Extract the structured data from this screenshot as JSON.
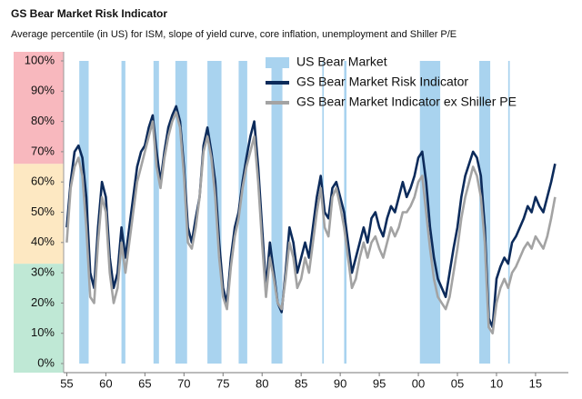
{
  "chart_data": {
    "type": "line",
    "title": "GS Bear Market Risk Indicator",
    "subtitle": "Average percentile (in US) for ISM, slope of yield curve, core inflation, unemployment and Shiller P/E",
    "xlim": [
      1954.6,
      2019.2
    ],
    "ylim": [
      -3,
      103
    ],
    "xticks": [
      {
        "value": 1955,
        "label": "55"
      },
      {
        "value": 1960,
        "label": "60"
      },
      {
        "value": 1965,
        "label": "65"
      },
      {
        "value": 1970,
        "label": "70"
      },
      {
        "value": 1975,
        "label": "75"
      },
      {
        "value": 1980,
        "label": "80"
      },
      {
        "value": 1985,
        "label": "85"
      },
      {
        "value": 1990,
        "label": "90"
      },
      {
        "value": 1995,
        "label": "95"
      },
      {
        "value": 2000,
        "label": "00"
      },
      {
        "value": 2005,
        "label": "05"
      },
      {
        "value": 2010,
        "label": "10"
      },
      {
        "value": 2015,
        "label": "15"
      }
    ],
    "yticks": [
      {
        "value": 0,
        "label": "0%"
      },
      {
        "value": 10,
        "label": "10%"
      },
      {
        "value": 20,
        "label": "20%"
      },
      {
        "value": 30,
        "label": "30%"
      },
      {
        "value": 40,
        "label": "40%"
      },
      {
        "value": 50,
        "label": "50%"
      },
      {
        "value": 60,
        "label": "60%"
      },
      {
        "value": 70,
        "label": "70%"
      },
      {
        "value": 80,
        "label": "80%"
      },
      {
        "value": 90,
        "label": "90%"
      },
      {
        "value": 100,
        "label": "100%"
      }
    ],
    "zones": [
      {
        "from": -3,
        "to": 33,
        "color": "#bfe8d5"
      },
      {
        "from": 33,
        "to": 66,
        "color": "#fde8c2"
      },
      {
        "from": 66,
        "to": 103,
        "color": "#f8b8be"
      }
    ],
    "bear_markets": {
      "name": "US Bear Market",
      "color": "#a9d3ef",
      "periods": [
        [
          1956.6,
          1957.8
        ],
        [
          1962.0,
          1962.5
        ],
        [
          1966.1,
          1966.8
        ],
        [
          1968.9,
          1970.4
        ],
        [
          1973.0,
          1974.8
        ],
        [
          1977.0,
          1978.1
        ],
        [
          1981.2,
          1982.6
        ],
        [
          1987.7,
          1987.9
        ],
        [
          1990.5,
          1990.8
        ],
        [
          2000.2,
          2002.8
        ],
        [
          2007.8,
          2009.2
        ],
        [
          2011.5,
          2011.7
        ]
      ]
    },
    "legend": "upper right",
    "x": [
      1955,
      1955.5,
      1956,
      1956.5,
      1957,
      1957.5,
      1958,
      1958.5,
      1959,
      1959.5,
      1960,
      1960.5,
      1961,
      1961.5,
      1962,
      1962.5,
      1963,
      1963.5,
      1964,
      1964.5,
      1965,
      1965.5,
      1966,
      1966.5,
      1967,
      1967.5,
      1968,
      1968.5,
      1969,
      1969.5,
      1970,
      1970.5,
      1971,
      1971.5,
      1972,
      1972.5,
      1973,
      1973.5,
      1974,
      1974.5,
      1975,
      1975.5,
      1976,
      1976.5,
      1977,
      1977.5,
      1978,
      1978.5,
      1979,
      1979.5,
      1980,
      1980.5,
      1981,
      1981.5,
      1982,
      1982.5,
      1983,
      1983.5,
      1984,
      1984.5,
      1985,
      1985.5,
      1986,
      1986.5,
      1987,
      1987.5,
      1988,
      1988.5,
      1989,
      1989.5,
      1990,
      1990.5,
      1991,
      1991.5,
      1992,
      1992.5,
      1993,
      1993.5,
      1994,
      1994.5,
      1995,
      1995.5,
      1996,
      1996.5,
      1997,
      1997.5,
      1998,
      1998.5,
      1999,
      1999.5,
      2000,
      2000.5,
      2001,
      2001.5,
      2002,
      2002.5,
      2003,
      2003.5,
      2004,
      2004.5,
      2005,
      2005.5,
      2006,
      2006.5,
      2007,
      2007.5,
      2008,
      2008.5,
      2009,
      2009.5,
      2010,
      2010.5,
      2011,
      2011.5,
      2012,
      2012.5,
      2013,
      2013.5,
      2014,
      2014.5,
      2015,
      2015.5,
      2016,
      2016.5,
      2017,
      2017.5
    ],
    "series": [
      {
        "name": "GS Bear Market Risk Indicator",
        "color": "#0c2b5b",
        "values": [
          45,
          60,
          70,
          72,
          68,
          55,
          30,
          25,
          45,
          60,
          55,
          35,
          25,
          30,
          45,
          35,
          45,
          55,
          65,
          70,
          72,
          78,
          82,
          70,
          60,
          70,
          78,
          82,
          85,
          80,
          65,
          45,
          40,
          48,
          55,
          72,
          78,
          70,
          60,
          40,
          25,
          20,
          35,
          45,
          50,
          60,
          68,
          75,
          80,
          65,
          45,
          25,
          40,
          30,
          20,
          17,
          30,
          45,
          40,
          30,
          35,
          40,
          35,
          45,
          55,
          62,
          50,
          48,
          58,
          60,
          55,
          50,
          40,
          30,
          35,
          40,
          45,
          40,
          48,
          50,
          45,
          42,
          48,
          52,
          50,
          55,
          60,
          55,
          58,
          62,
          68,
          70,
          60,
          45,
          35,
          28,
          25,
          22,
          30,
          38,
          45,
          55,
          62,
          66,
          70,
          68,
          62,
          45,
          15,
          12,
          28,
          32,
          35,
          33,
          40,
          42,
          45,
          48,
          52,
          50,
          55,
          52,
          50,
          55,
          60,
          66
        ]
      },
      {
        "name": "GS Bear Market Indicator ex Shiller PE",
        "color": "#a3a3a3",
        "values": [
          40,
          58,
          65,
          68,
          62,
          45,
          22,
          20,
          40,
          55,
          50,
          30,
          20,
          25,
          40,
          30,
          40,
          50,
          60,
          65,
          70,
          75,
          80,
          65,
          58,
          68,
          75,
          80,
          83,
          78,
          62,
          40,
          38,
          45,
          55,
          70,
          75,
          68,
          55,
          35,
          22,
          18,
          32,
          42,
          48,
          58,
          65,
          70,
          75,
          60,
          40,
          22,
          35,
          28,
          20,
          18,
          28,
          40,
          35,
          25,
          28,
          35,
          30,
          40,
          50,
          58,
          45,
          42,
          55,
          58,
          52,
          45,
          35,
          25,
          28,
          35,
          40,
          35,
          40,
          42,
          38,
          35,
          40,
          45,
          42,
          45,
          50,
          50,
          52,
          55,
          60,
          62,
          50,
          38,
          28,
          22,
          20,
          18,
          22,
          30,
          38,
          48,
          55,
          60,
          65,
          62,
          55,
          40,
          12,
          10,
          20,
          25,
          28,
          25,
          30,
          32,
          35,
          38,
          40,
          38,
          42,
          40,
          38,
          42,
          48,
          55
        ]
      }
    ]
  }
}
